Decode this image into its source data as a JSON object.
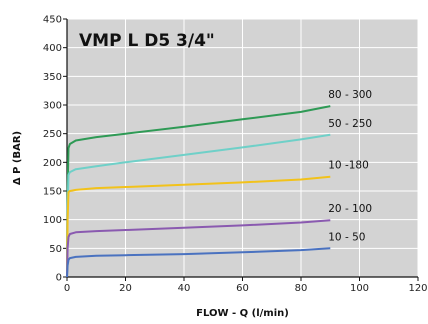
{
  "chart_data": {
    "type": "line",
    "title": "VMP L D5 3/4\"",
    "xlabel": "FLOW - Q (l/min)",
    "ylabel": "Δ P (BAR)",
    "xlim": [
      0,
      120
    ],
    "ylim": [
      0,
      450
    ],
    "x_ticks": [
      0,
      20,
      40,
      60,
      80,
      100,
      120
    ],
    "y_ticks": [
      0,
      50,
      100,
      150,
      200,
      250,
      300,
      350,
      400,
      450
    ],
    "grid": true,
    "colors": {
      "background": "#d3d3d3",
      "grid": "#ffffff"
    },
    "series": [
      {
        "name": "80 - 300",
        "color": "#2e9a55",
        "x": [
          0,
          0.2,
          0.5,
          1,
          3,
          10,
          20,
          40,
          60,
          80,
          90
        ],
        "y": [
          0,
          150,
          225,
          232,
          238,
          244,
          250,
          262,
          275,
          288,
          298
        ]
      },
      {
        "name": "50 - 250",
        "color": "#6fd0c8",
        "x": [
          0,
          0.2,
          0.5,
          1,
          3,
          10,
          20,
          40,
          60,
          80,
          90
        ],
        "y": [
          0,
          120,
          178,
          183,
          188,
          193,
          200,
          213,
          226,
          240,
          248
        ]
      },
      {
        "name": "10 -180",
        "color": "#f2c21a",
        "x": [
          0,
          0.2,
          0.5,
          1,
          3,
          10,
          20,
          40,
          60,
          80,
          90
        ],
        "y": [
          0,
          100,
          148,
          150,
          152,
          155,
          157,
          161,
          165,
          170,
          175
        ]
      },
      {
        "name": "20 - 100",
        "color": "#8a5ab0",
        "x": [
          0,
          0.2,
          0.5,
          1,
          3,
          10,
          20,
          40,
          60,
          80,
          90
        ],
        "y": [
          0,
          50,
          70,
          75,
          78,
          80,
          82,
          86,
          90,
          95,
          99
        ]
      },
      {
        "name": "10 - 50",
        "color": "#4a72c0",
        "x": [
          0,
          0.2,
          0.5,
          1,
          3,
          10,
          20,
          40,
          60,
          80,
          90
        ],
        "y": [
          0,
          20,
          30,
          33,
          35,
          37,
          38,
          40,
          43,
          47,
          50
        ]
      }
    ]
  }
}
